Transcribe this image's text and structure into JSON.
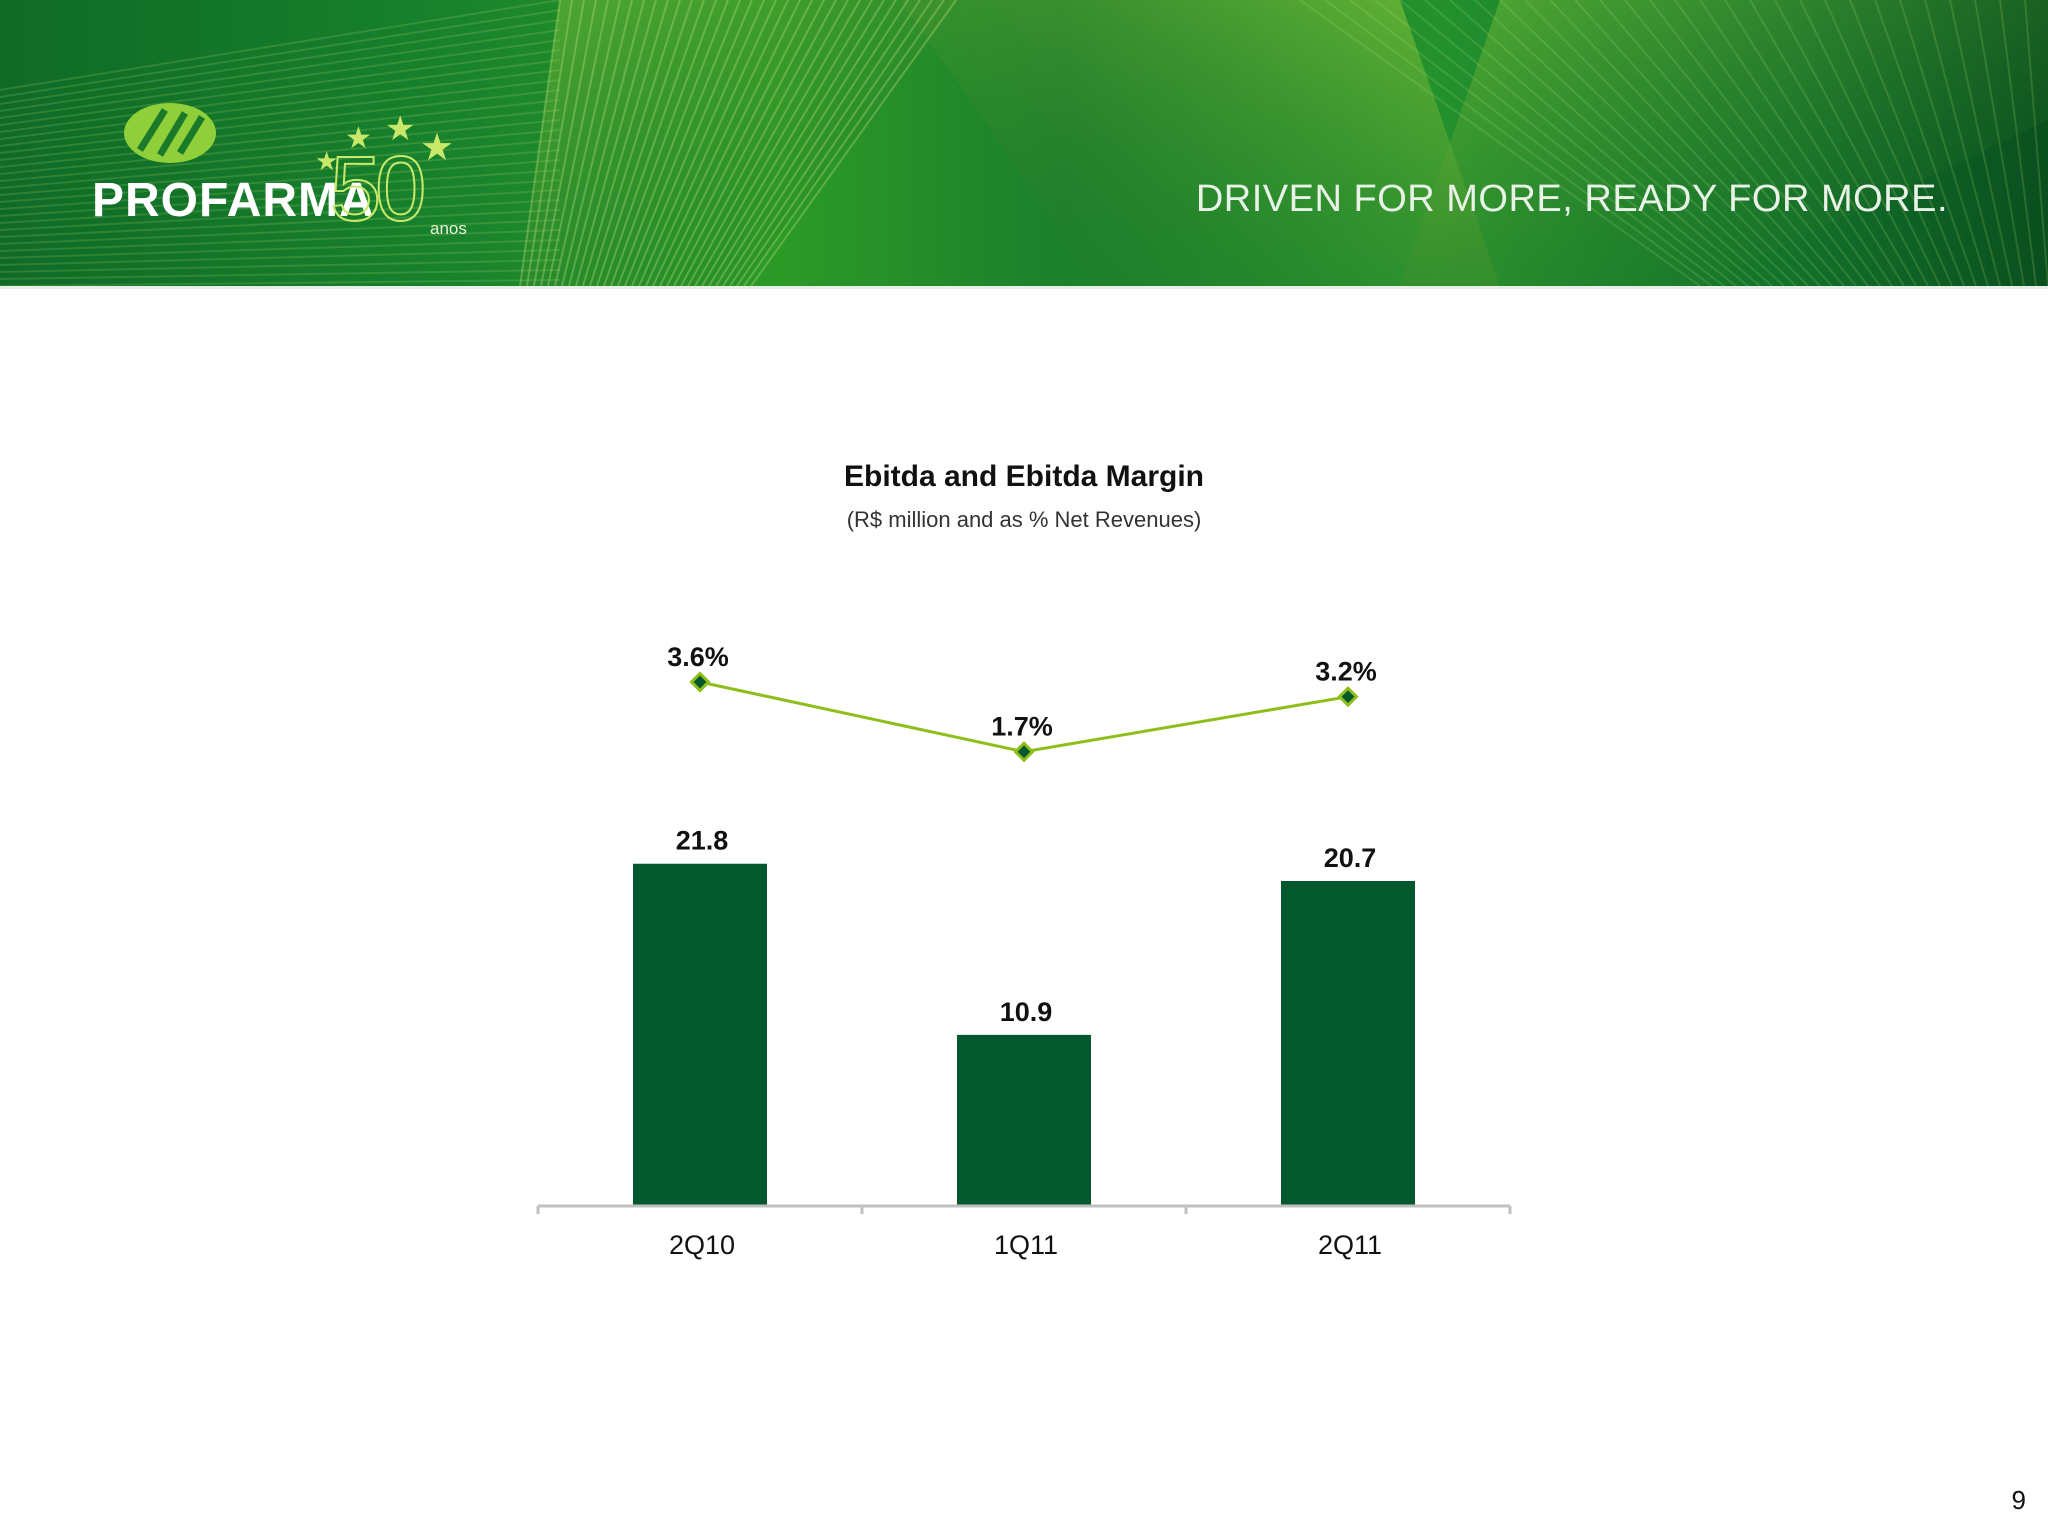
{
  "banner": {
    "logo_text": "PROFARMA",
    "anniversary_number": "50",
    "anniversary_word": "anos",
    "slogan": "DRIVEN FOR MORE, READY FOR MORE."
  },
  "colors": {
    "bar": "#03582e",
    "line": "#8fbd19",
    "marker": "#03582e",
    "axis": "#c0c0c0"
  },
  "chart_data": {
    "type": "bar",
    "title": "Ebitda and Ebitda Margin",
    "subtitle": "(R$ million and as % Net Revenues)",
    "categories": [
      "2Q10",
      "1Q11",
      "2Q11"
    ],
    "series": [
      {
        "type": "bar",
        "values": [
          21.8,
          10.9,
          20.7
        ],
        "labels": [
          "21.8",
          "10.9",
          "20.7"
        ]
      },
      {
        "type": "line",
        "values": [
          3.6,
          1.7,
          3.2
        ],
        "labels": [
          "3.6%",
          "1.7%",
          "3.2%"
        ]
      }
    ],
    "grid": false,
    "legend": "none"
  },
  "page_number": "9"
}
